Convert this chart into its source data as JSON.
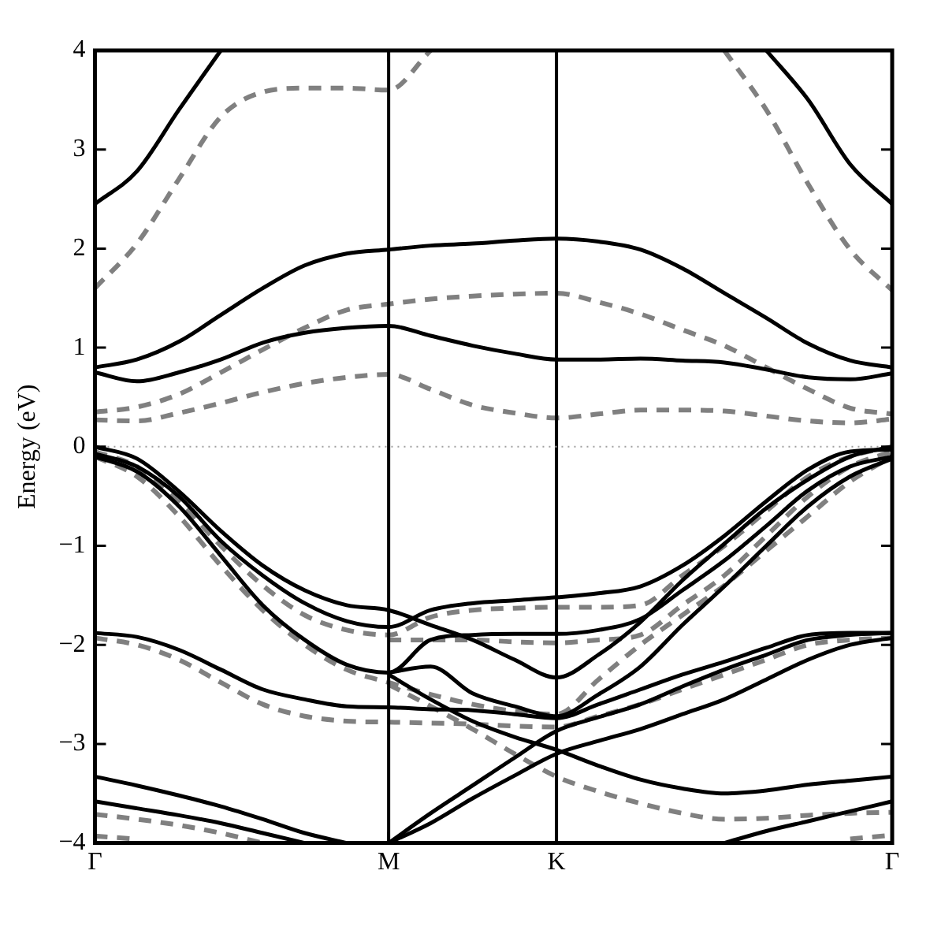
{
  "chart_data": {
    "type": "line",
    "ylabel": "Energy (eV)",
    "categories": [
      "Γ",
      null,
      null,
      null,
      null,
      null,
      null,
      "M",
      null,
      null,
      null,
      "K",
      null,
      null,
      null,
      null,
      null,
      null,
      null,
      "Γ"
    ],
    "ylim": [
      -4,
      4
    ],
    "yticks": [
      {
        "value": -4,
        "label": "−4"
      },
      {
        "value": -3,
        "label": "−3"
      },
      {
        "value": -2,
        "label": "−2"
      },
      {
        "value": -1,
        "label": "−1"
      },
      0,
      1,
      2,
      3,
      4
    ],
    "grid": false,
    "legend": false,
    "marker": "none",
    "ref_lines": [
      {
        "axis": "x",
        "value": "M",
        "color": "#000000",
        "line_style": "solid"
      },
      {
        "axis": "x",
        "value": "K",
        "color": "#000000",
        "line_style": "solid"
      },
      {
        "axis": "y",
        "value": 0,
        "color": "#a0a0a0",
        "line_style": "dotted"
      }
    ],
    "series": [
      {
        "color": "#000000",
        "line_style": "solid",
        "values": [
          2.45,
          2.78,
          3.4,
          4.0,
          null,
          null,
          null,
          null,
          null,
          null,
          null,
          null,
          null,
          null,
          null,
          null,
          4.0,
          3.5,
          2.85,
          2.45
        ]
      },
      {
        "color": "#808080",
        "line_style": "dashed",
        "values": [
          1.6,
          2.05,
          2.7,
          3.33,
          3.58,
          3.62,
          3.62,
          3.6,
          4.0,
          null,
          null,
          null,
          null,
          null,
          null,
          4.0,
          3.4,
          2.65,
          1.99,
          1.58
        ]
      },
      {
        "color": "#000000",
        "line_style": "solid",
        "values": [
          0.8,
          0.88,
          1.06,
          1.33,
          1.6,
          1.83,
          1.95,
          1.99,
          2.03,
          2.05,
          2.08,
          2.1,
          2.07,
          1.99,
          1.8,
          1.55,
          1.3,
          1.04,
          0.87,
          0.8
        ]
      },
      {
        "color": "#000000",
        "line_style": "solid",
        "values": [
          0.75,
          0.66,
          0.75,
          0.88,
          1.05,
          1.15,
          1.2,
          1.22,
          1.12,
          1.02,
          0.94,
          0.88,
          0.88,
          0.89,
          0.87,
          0.85,
          0.78,
          0.7,
          0.68,
          0.74
        ]
      },
      {
        "color": "#808080",
        "line_style": "dashed",
        "values": [
          0.35,
          0.4,
          0.53,
          0.75,
          0.98,
          1.2,
          1.38,
          1.44,
          1.49,
          1.52,
          1.54,
          1.55,
          1.46,
          1.34,
          1.18,
          1.02,
          0.8,
          0.58,
          0.39,
          0.33
        ]
      },
      {
        "color": "#808080",
        "line_style": "dashed",
        "values": [
          0.27,
          0.26,
          0.34,
          0.44,
          0.55,
          0.64,
          0.7,
          0.73,
          0.58,
          0.42,
          0.34,
          0.29,
          0.33,
          0.37,
          0.37,
          0.36,
          0.31,
          0.26,
          0.24,
          0.28
        ]
      },
      {
        "color": "#000000",
        "line_style": "solid",
        "values": [
          0,
          -0.12,
          -0.45,
          -0.85,
          -1.2,
          -1.45,
          -1.6,
          -1.65,
          -1.8,
          -1.95,
          -2.15,
          -2.33,
          -2.1,
          -1.77,
          -1.35,
          -0.98,
          -0.62,
          -0.33,
          -0.1,
          0
        ]
      },
      {
        "color": "#000000",
        "line_style": "solid",
        "values": [
          -0.07,
          -0.2,
          -0.5,
          -0.95,
          -1.3,
          -1.58,
          -1.76,
          -1.82,
          -1.65,
          -1.58,
          -1.55,
          -1.52,
          -1.48,
          -1.41,
          -1.2,
          -0.9,
          -0.55,
          -0.23,
          -0.05,
          -0.03
        ]
      },
      {
        "color": "#000000",
        "line_style": "solid",
        "values": [
          -0.1,
          -0.25,
          -0.6,
          -1.1,
          -1.6,
          -1.95,
          -2.2,
          -2.28,
          -1.95,
          -1.9,
          -1.89,
          -1.89,
          -1.85,
          -1.74,
          -1.45,
          -1.15,
          -0.8,
          -0.44,
          -0.2,
          -0.1
        ]
      },
      {
        "color": "#000000",
        "line_style": "solid",
        "values": [
          null,
          null,
          null,
          null,
          null,
          null,
          null,
          -2.28,
          -2.22,
          -2.49,
          -2.62,
          -2.72,
          -2.5,
          -2.22,
          -1.8,
          -1.41,
          -1.0,
          -0.6,
          -0.3,
          -0.12
        ]
      },
      {
        "color": "#000000",
        "line_style": "solid",
        "values": [
          -1.88,
          -1.92,
          -2.05,
          -2.25,
          -2.45,
          -2.55,
          -2.62,
          -2.63,
          -2.65,
          -2.66,
          -2.7,
          -2.74,
          -2.6,
          -2.45,
          -2.3,
          -2.17,
          -2.03,
          -1.9,
          -1.88,
          -1.88
        ]
      },
      {
        "color": "#000000",
        "line_style": "solid",
        "values": [
          -3.33,
          -3.42,
          -3.52,
          -3.63,
          -3.76,
          -3.9,
          -4.0,
          null,
          null,
          null,
          null,
          null,
          null,
          null,
          null,
          null,
          null,
          null,
          null,
          null
        ]
      },
      {
        "color": "#000000",
        "line_style": "solid",
        "values": [
          null,
          null,
          null,
          null,
          null,
          null,
          null,
          -2.3,
          -2.55,
          -2.77,
          -2.93,
          -3.06,
          -3.22,
          -3.36,
          -3.45,
          -3.5,
          -3.47,
          -3.41,
          -3.37,
          -3.33
        ]
      },
      {
        "color": "#000000",
        "line_style": "solid",
        "values": [
          -3.58,
          -3.65,
          -3.72,
          -3.8,
          -3.9,
          -4.0,
          null,
          null,
          null,
          null,
          null,
          null,
          null,
          null,
          null,
          -4.0,
          -3.88,
          -3.78,
          -3.68,
          -3.58
        ]
      },
      {
        "color": "#000000",
        "line_style": "solid",
        "values": [
          null,
          null,
          null,
          null,
          null,
          null,
          null,
          -4.0,
          -3.7,
          -3.42,
          -3.14,
          -2.87,
          -2.73,
          -2.6,
          -2.42,
          -2.25,
          -2.1,
          -1.95,
          -1.9,
          -1.88
        ]
      },
      {
        "color": "#000000",
        "line_style": "solid",
        "values": [
          null,
          null,
          null,
          null,
          null,
          null,
          null,
          -4.0,
          -3.8,
          -3.55,
          -3.32,
          -3.1,
          -2.97,
          -2.85,
          -2.7,
          -2.55,
          -2.35,
          -2.15,
          -2.0,
          -1.93
        ]
      },
      {
        "color": "#808080",
        "line_style": "dashed",
        "values": [
          -0.05,
          -0.2,
          -0.55,
          -1.0,
          -1.4,
          -1.7,
          -1.85,
          -1.9,
          -1.72,
          -1.65,
          -1.63,
          -1.62,
          -1.62,
          -1.6,
          -1.3,
          -1.0,
          -0.65,
          -0.3,
          -0.1,
          0
        ]
      },
      {
        "color": "#808080",
        "line_style": "dashed",
        "values": [
          null,
          null,
          null,
          null,
          null,
          null,
          null,
          -1.95,
          -1.95,
          -1.95,
          -1.97,
          -1.98,
          -1.95,
          -1.9,
          -1.6,
          -1.3,
          -0.9,
          -0.5,
          -0.2,
          -0.05
        ]
      },
      {
        "color": "#808080",
        "line_style": "dashed",
        "values": [
          -0.1,
          -0.3,
          -0.7,
          -1.2,
          -1.65,
          -2.0,
          -2.25,
          -2.38,
          -2.5,
          -2.6,
          -2.67,
          -2.7,
          -2.35,
          -2.0,
          -1.7,
          -1.4,
          -1.05,
          -0.7,
          -0.35,
          -0.1
        ]
      },
      {
        "color": "#808080",
        "line_style": "dashed",
        "values": [
          -1.93,
          -2.0,
          -2.15,
          -2.38,
          -2.6,
          -2.72,
          -2.77,
          -2.78,
          -2.79,
          -2.8,
          -2.82,
          -2.83,
          -2.72,
          -2.6,
          -2.45,
          -2.3,
          -2.15,
          -2.0,
          -1.95,
          -1.93
        ]
      },
      {
        "color": "#808080",
        "line_style": "dashed",
        "values": [
          -3.71,
          -3.76,
          -3.82,
          -3.9,
          -4.0,
          null,
          null,
          -2.4,
          -2.62,
          -2.85,
          -3.1,
          -3.33,
          -3.48,
          -3.6,
          -3.7,
          -3.76,
          -3.75,
          -3.72,
          -3.7,
          -3.69
        ]
      },
      {
        "color": "#808080",
        "line_style": "dashed",
        "values": [
          -3.93,
          -3.96,
          null,
          null,
          null,
          null,
          null,
          null,
          null,
          null,
          null,
          null,
          null,
          null,
          null,
          null,
          null,
          null,
          -3.96,
          -3.92
        ]
      }
    ]
  }
}
